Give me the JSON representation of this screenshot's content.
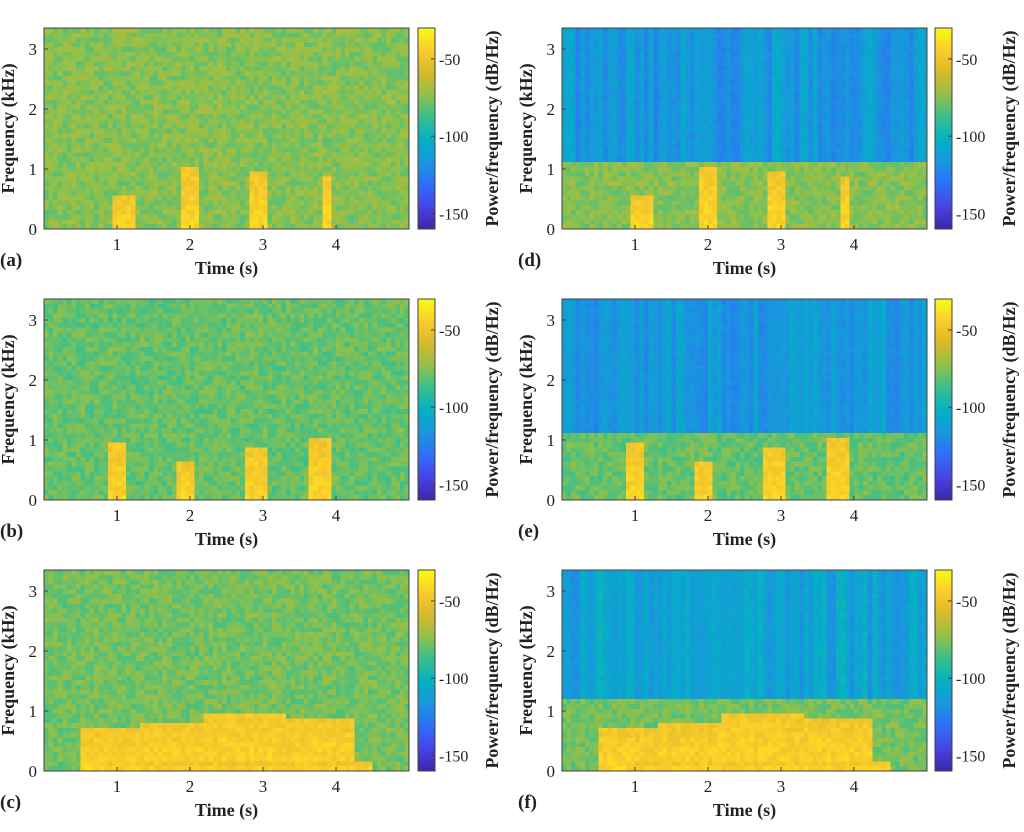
{
  "figure": {
    "panel_labels": [
      "(a)",
      "(b)",
      "(c)",
      "(d)",
      "(e)",
      "(f)"
    ]
  },
  "colors": {
    "colormap": [
      "#3e26a8",
      "#4743e6",
      "#2f6ff8",
      "#1996dd",
      "#04b0c4",
      "#37bf8e",
      "#90c04b",
      "#d6b92a",
      "#fbcc2b",
      "#f9fb14"
    ],
    "axis": "#404040"
  },
  "chart_data": [
    {
      "id": "a",
      "type": "heatmap",
      "label": "(a)",
      "xlabel": "Time (s)",
      "ylabel": "Frequency (kHz)",
      "xlim": [
        0,
        5
      ],
      "ylim": [
        0,
        3.35
      ],
      "xticks": [
        1,
        2,
        3,
        4
      ],
      "yticks": [
        0,
        1,
        2,
        3
      ],
      "colorbar": {
        "label": "Power/frequency (dB/Hz)",
        "ticks": [
          -50,
          -100,
          -150
        ],
        "range": [
          -160,
          -30
        ]
      },
      "background_db": -75,
      "events": [
        {
          "t_start": 0.95,
          "t_end": 1.25,
          "f_max": 0.55
        },
        {
          "t_start": 1.85,
          "t_end": 2.1,
          "f_max": 1.0
        },
        {
          "t_start": 2.8,
          "t_end": 3.05,
          "f_max": 0.95
        },
        {
          "t_start": 3.8,
          "t_end": 3.95,
          "f_max": 0.85
        }
      ]
    },
    {
      "id": "b",
      "type": "heatmap",
      "label": "(b)",
      "xlabel": "Time (s)",
      "ylabel": "Frequency (kHz)",
      "xlim": [
        0,
        5
      ],
      "ylim": [
        0,
        3.35
      ],
      "xticks": [
        1,
        2,
        3,
        4
      ],
      "yticks": [
        0,
        1,
        2,
        3
      ],
      "colorbar": {
        "label": "Power/frequency (dB/Hz)",
        "ticks": [
          -50,
          -100,
          -150
        ],
        "range": [
          -160,
          -30
        ]
      },
      "background_db": -80,
      "events": [
        {
          "t_start": 0.85,
          "t_end": 1.1,
          "f_max": 0.95
        },
        {
          "t_start": 1.8,
          "t_end": 2.05,
          "f_max": 0.6
        },
        {
          "t_start": 2.75,
          "t_end": 3.05,
          "f_max": 0.85
        },
        {
          "t_start": 3.65,
          "t_end": 3.95,
          "f_max": 1.0
        }
      ]
    },
    {
      "id": "c",
      "type": "heatmap",
      "label": "(c)",
      "xlabel": "Time (s)",
      "ylabel": "Frequency (kHz)",
      "xlim": [
        0,
        5
      ],
      "ylim": [
        0,
        3.35
      ],
      "xticks": [
        1,
        2,
        3,
        4
      ],
      "yticks": [
        0,
        1,
        2,
        3
      ],
      "colorbar": {
        "label": "Power/frequency (dB/Hz)",
        "ticks": [
          -50,
          -100,
          -150
        ],
        "range": [
          -160,
          -30
        ]
      },
      "background_db": -78,
      "events": [
        {
          "t_start": 0.5,
          "t_end": 0.8,
          "f_max": 0.7
        },
        {
          "t_start": 0.8,
          "t_end": 1.3,
          "f_max": 0.75
        },
        {
          "t_start": 1.3,
          "t_end": 2.2,
          "f_max": 0.8
        },
        {
          "t_start": 2.2,
          "t_end": 3.3,
          "f_max": 0.95
        },
        {
          "t_start": 3.3,
          "t_end": 4.25,
          "f_max": 0.9
        },
        {
          "t_start": 0.9,
          "t_end": 4.5,
          "f_max": 0.12
        }
      ]
    },
    {
      "id": "d",
      "type": "heatmap",
      "label": "(d)",
      "xlabel": "Time (s)",
      "ylabel": "Frequency (kHz)",
      "xlim": [
        0,
        5
      ],
      "ylim": [
        0,
        3.35
      ],
      "xticks": [
        1,
        2,
        3,
        4
      ],
      "yticks": [
        0,
        1,
        2,
        3
      ],
      "colorbar": {
        "label": "Power/frequency (dB/Hz)",
        "ticks": [
          -50,
          -100,
          -150
        ],
        "range": [
          -160,
          -30
        ]
      },
      "background_db": -75,
      "cutoff_khz": 1.15,
      "upper_db": -115,
      "events": [
        {
          "t_start": 0.95,
          "t_end": 1.25,
          "f_max": 0.55
        },
        {
          "t_start": 1.85,
          "t_end": 2.1,
          "f_max": 1.0
        },
        {
          "t_start": 2.8,
          "t_end": 3.05,
          "f_max": 0.95
        },
        {
          "t_start": 3.8,
          "t_end": 3.95,
          "f_max": 0.85
        }
      ]
    },
    {
      "id": "e",
      "type": "heatmap",
      "label": "(e)",
      "xlabel": "Time (s)",
      "ylabel": "Frequency (kHz)",
      "xlim": [
        0,
        5
      ],
      "ylim": [
        0,
        3.35
      ],
      "xticks": [
        1,
        2,
        3,
        4
      ],
      "yticks": [
        0,
        1,
        2,
        3
      ],
      "colorbar": {
        "label": "Power/frequency (dB/Hz)",
        "ticks": [
          -50,
          -100,
          -150
        ],
        "range": [
          -160,
          -30
        ]
      },
      "background_db": -80,
      "cutoff_khz": 1.1,
      "upper_db": -115,
      "events": [
        {
          "t_start": 0.85,
          "t_end": 1.1,
          "f_max": 0.95
        },
        {
          "t_start": 1.8,
          "t_end": 2.05,
          "f_max": 0.6
        },
        {
          "t_start": 2.75,
          "t_end": 3.05,
          "f_max": 0.85
        },
        {
          "t_start": 3.65,
          "t_end": 3.95,
          "f_max": 1.0
        }
      ]
    },
    {
      "id": "f",
      "type": "heatmap",
      "label": "(f)",
      "xlabel": "Time (s)",
      "ylabel": "Frequency (kHz)",
      "xlim": [
        0,
        5
      ],
      "ylim": [
        0,
        3.35
      ],
      "xticks": [
        1,
        2,
        3,
        4
      ],
      "yticks": [
        0,
        1,
        2,
        3
      ],
      "colorbar": {
        "label": "Power/frequency (dB/Hz)",
        "ticks": [
          -50,
          -100,
          -150
        ],
        "range": [
          -160,
          -30
        ]
      },
      "background_db": -78,
      "cutoff_khz": 1.2,
      "upper_db": -110,
      "events": [
        {
          "t_start": 0.5,
          "t_end": 0.8,
          "f_max": 0.7
        },
        {
          "t_start": 0.8,
          "t_end": 1.3,
          "f_max": 0.75
        },
        {
          "t_start": 1.3,
          "t_end": 2.2,
          "f_max": 0.8
        },
        {
          "t_start": 2.2,
          "t_end": 3.3,
          "f_max": 0.95
        },
        {
          "t_start": 3.3,
          "t_end": 4.25,
          "f_max": 0.9
        },
        {
          "t_start": 0.9,
          "t_end": 4.5,
          "f_max": 0.12
        }
      ]
    }
  ]
}
